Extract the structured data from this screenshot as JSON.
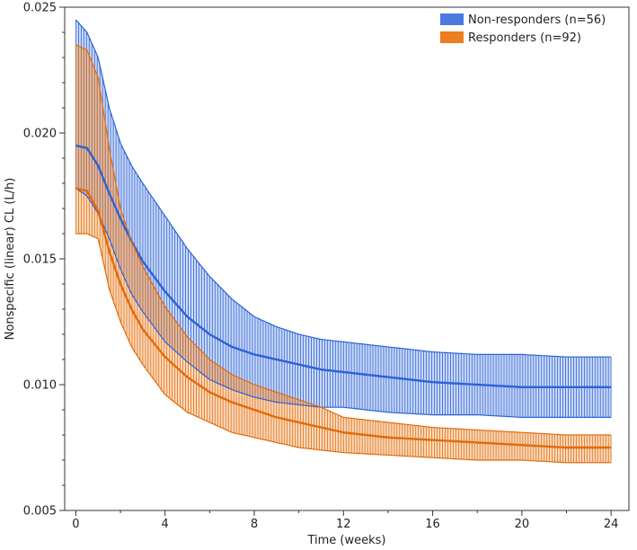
{
  "chart_data": {
    "type": "line",
    "title": "",
    "xlabel": "Time (weeks)",
    "ylabel": "Nonspecific (linear) CL (L/h)",
    "xlim": [
      -0.5,
      24.8
    ],
    "ylim": [
      0.005,
      0.025
    ],
    "x_ticks": [
      0,
      4,
      8,
      12,
      16,
      20,
      24
    ],
    "y_ticks": [
      0.005,
      0.01,
      0.015,
      0.02,
      0.025
    ],
    "x_tick_labels": [
      "0",
      "4",
      "8",
      "12",
      "16",
      "20",
      "24"
    ],
    "y_tick_labels": [
      "0.005",
      "0.010",
      "0.015",
      "0.020",
      "0.025"
    ],
    "legend_position": "top-right",
    "grid": false,
    "x": [
      0,
      0.5,
      1,
      1.5,
      2,
      2.5,
      3,
      4,
      5,
      6,
      7,
      8,
      9,
      10,
      11,
      12,
      14,
      16,
      18,
      20,
      22,
      24
    ],
    "series": [
      {
        "name": "Non-responders (n=56)",
        "color": "#2b62d9",
        "fill": "#4a7ae0",
        "median": [
          0.0195,
          0.0194,
          0.0187,
          0.0176,
          0.0166,
          0.0157,
          0.0149,
          0.0137,
          0.0127,
          0.012,
          0.0115,
          0.0112,
          0.011,
          0.0108,
          0.0106,
          0.0105,
          0.0103,
          0.0101,
          0.01,
          0.0099,
          0.0099,
          0.0099
        ],
        "upper": [
          0.0245,
          0.024,
          0.023,
          0.021,
          0.0196,
          0.0187,
          0.018,
          0.0167,
          0.0154,
          0.0143,
          0.0134,
          0.0127,
          0.0123,
          0.012,
          0.0118,
          0.0117,
          0.0115,
          0.0113,
          0.0112,
          0.0112,
          0.0111,
          0.0111
        ],
        "lower": [
          0.0178,
          0.0175,
          0.0168,
          0.0158,
          0.0146,
          0.0136,
          0.0129,
          0.0117,
          0.0109,
          0.0102,
          0.0098,
          0.0095,
          0.0093,
          0.0092,
          0.0091,
          0.0091,
          0.0089,
          0.0088,
          0.0088,
          0.0087,
          0.0087,
          0.0087
        ]
      },
      {
        "name": "Responders (n=92)",
        "color": "#e36a0a",
        "fill": "#ed7d1e",
        "median": [
          0.0178,
          0.0177,
          0.0169,
          0.0153,
          0.014,
          0.013,
          0.0122,
          0.0111,
          0.0103,
          0.0097,
          0.0093,
          0.009,
          0.0087,
          0.0085,
          0.0083,
          0.0081,
          0.0079,
          0.0078,
          0.0077,
          0.0076,
          0.0075,
          0.0075
        ],
        "upper": [
          0.0235,
          0.0233,
          0.0222,
          0.0194,
          0.017,
          0.0157,
          0.0147,
          0.0131,
          0.0119,
          0.011,
          0.0104,
          0.01,
          0.0097,
          0.0094,
          0.0091,
          0.0087,
          0.0085,
          0.0083,
          0.0082,
          0.0081,
          0.008,
          0.008
        ],
        "lower": [
          0.016,
          0.016,
          0.0158,
          0.0138,
          0.0125,
          0.0115,
          0.0108,
          0.0096,
          0.0089,
          0.0085,
          0.0081,
          0.0079,
          0.0077,
          0.0075,
          0.0074,
          0.0073,
          0.0072,
          0.0071,
          0.007,
          0.007,
          0.0069,
          0.0069
        ]
      }
    ]
  }
}
